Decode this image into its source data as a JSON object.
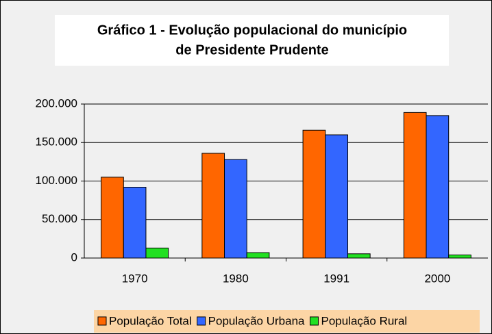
{
  "chart_data": {
    "type": "bar",
    "title": [
      "Gráfico 1  - Evolução populacional do município",
      "de Presidente Prudente"
    ],
    "categories": [
      "1970",
      "1980",
      "1991",
      "2000"
    ],
    "series": [
      {
        "name": "População Total",
        "color": "#ff6600",
        "values": [
          105000,
          136000,
          166000,
          189000
        ]
      },
      {
        "name": "População Urbana",
        "color": "#3366ff",
        "values": [
          92000,
          128000,
          160000,
          185000
        ]
      },
      {
        "name": "População Rural",
        "color": "#22e022",
        "values": [
          13000,
          7000,
          5500,
          4000
        ]
      }
    ],
    "ylim": [
      0,
      200000
    ],
    "yticks": [
      0,
      {
        "value": 50000,
        "label": "50.000"
      },
      {
        "value": 100000,
        "label": "100.000"
      },
      {
        "value": 150000,
        "label": "150.000"
      },
      {
        "value": 200000,
        "label": "200.000"
      }
    ],
    "grid": true,
    "legend": "bottom"
  }
}
